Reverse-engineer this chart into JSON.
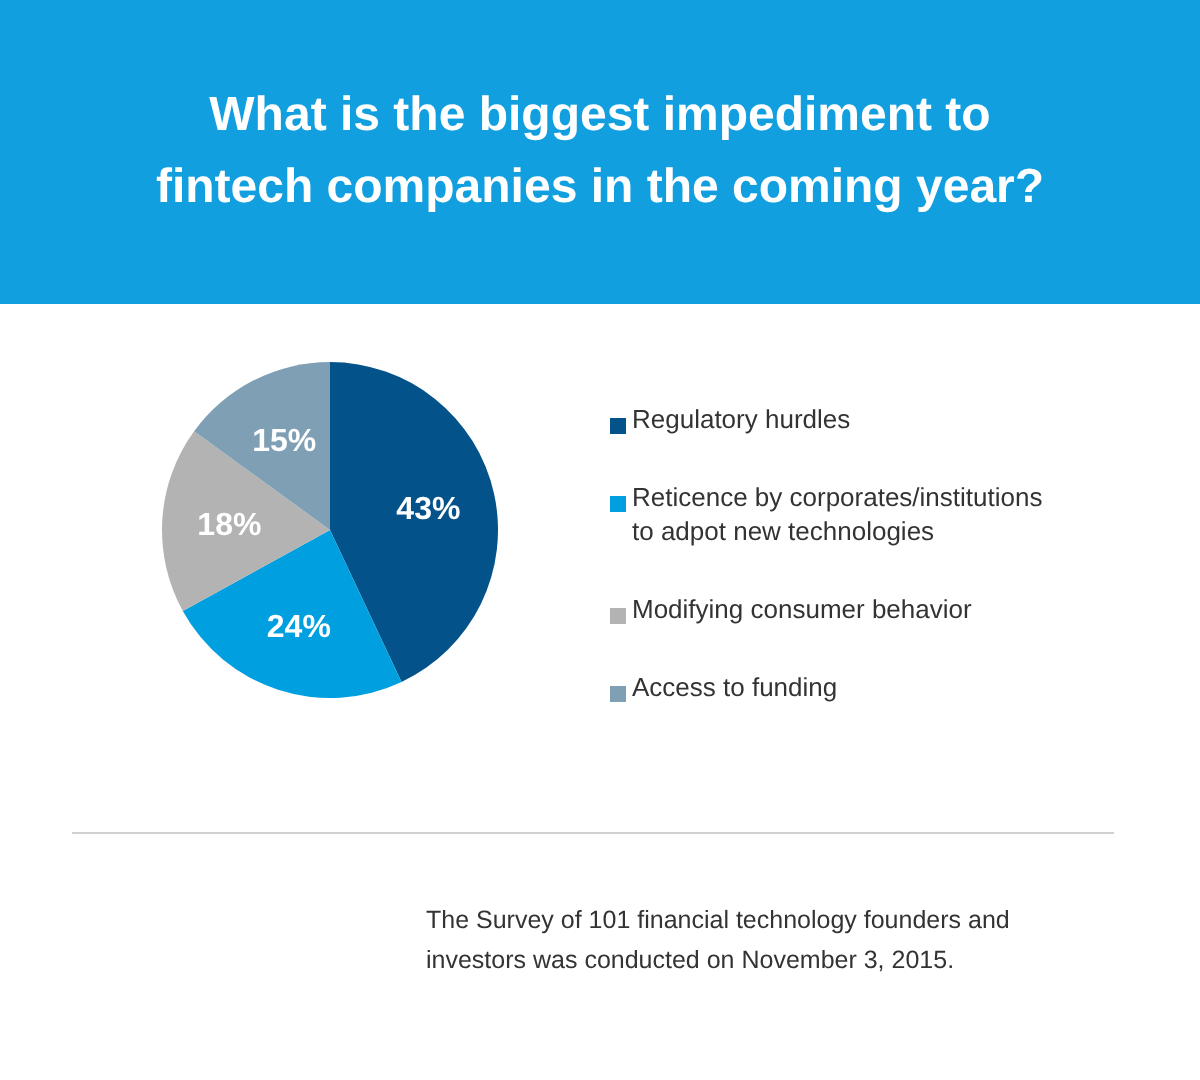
{
  "chart_data": {
    "type": "pie",
    "title": "What is the biggest impediment to fintech companies in the coming year?",
    "categories": [
      "Regulatory hurdles",
      "Reticence by corporates/institutions to adpot new technologies",
      "Modifying consumer behavior",
      "Access to funding"
    ],
    "values": [
      43,
      24,
      18,
      15
    ],
    "colors": [
      "#03528a",
      "#00a0e0",
      "#b3b3b3",
      "#7f9fb4"
    ],
    "value_labels": [
      "43%",
      "24%",
      "18%",
      "15%"
    ],
    "legend": "right",
    "annotations": [
      "The Survey of 101 financial technology founders and investors was conducted on November 3, 2015."
    ]
  }
}
